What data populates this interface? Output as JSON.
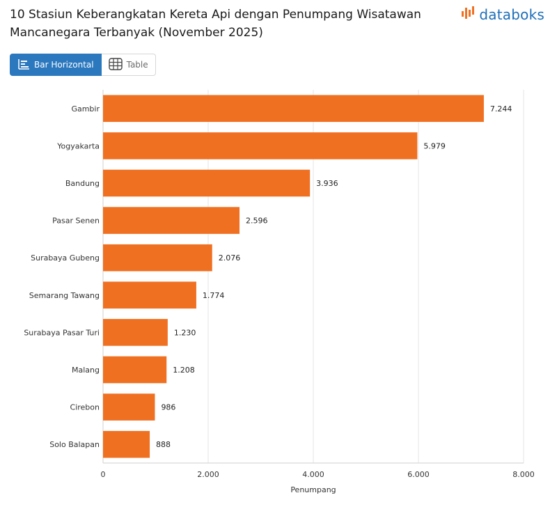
{
  "title": "10 Stasiun Keberangkatan Kereta Api dengan Penumpang Wisatawan Mancanegara Terbanyak (November 2025)",
  "brand": {
    "name": "databoks",
    "color": "#1e6fb8",
    "mark_color": "#f07022"
  },
  "toolbar": {
    "bar_label": "Bar Horizontal",
    "table_label": "Table"
  },
  "colors": {
    "bar": "#f07022",
    "grid": "#e6e6e6",
    "accent": "#2b78be"
  },
  "chart_data": {
    "type": "bar",
    "orientation": "horizontal",
    "categories": [
      "Gambir",
      "Yogyakarta",
      "Bandung",
      "Pasar Senen",
      "Surabaya Gubeng",
      "Semarang Tawang",
      "Surabaya Pasar Turi",
      "Malang",
      "Cirebon",
      "Solo Balapan"
    ],
    "values": [
      7244,
      5979,
      3936,
      2596,
      2076,
      1774,
      1230,
      1208,
      986,
      888
    ],
    "value_labels": [
      "7.244",
      "5.979",
      "3.936",
      "2.596",
      "2.076",
      "1.774",
      "1.230",
      "1.208",
      "986",
      "888"
    ],
    "xlabel": "Penumpang",
    "xlim": [
      0,
      8000
    ],
    "xticks": [
      0,
      2000,
      4000,
      6000,
      8000
    ],
    "xtick_labels": [
      "0",
      "2.000",
      "4.000",
      "6.000",
      "8.000"
    ],
    "grid": true
  }
}
